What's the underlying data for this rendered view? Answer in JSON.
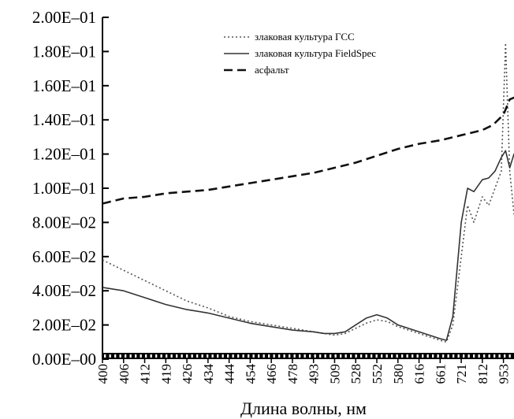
{
  "chart_data": {
    "type": "line",
    "title": "",
    "xlabel": "Длина волны, нм",
    "ylabel": "",
    "ylim": [
      0,
      0.2
    ],
    "y_ticks": [
      "0.00E–00",
      "2.00E–02",
      "4.00E–02",
      "6.00E–02",
      "8.00E–02",
      "1.00E–01",
      "1.20E–01",
      "1.40E–01",
      "1.60E–01",
      "1.80E–01",
      "2.00E–01"
    ],
    "x_ticks": [
      "400",
      "406",
      "412",
      "419",
      "426",
      "434",
      "444",
      "454",
      "466",
      "478",
      "493",
      "509",
      "528",
      "552",
      "580",
      "616",
      "661",
      "721",
      "812",
      "953"
    ],
    "grid": false,
    "legend_position": "top-right",
    "series": [
      {
        "name": "злаковая культура ГСС",
        "style": "dotted",
        "color": "#555555",
        "points": [
          [
            0,
            0.058
          ],
          [
            1,
            0.052
          ],
          [
            2,
            0.046
          ],
          [
            3,
            0.04
          ],
          [
            4,
            0.034
          ],
          [
            5,
            0.03
          ],
          [
            6,
            0.025
          ],
          [
            7,
            0.022
          ],
          [
            8,
            0.02
          ],
          [
            9,
            0.018
          ],
          [
            10,
            0.016
          ],
          [
            10.5,
            0.015
          ],
          [
            11,
            0.014
          ],
          [
            11.5,
            0.015
          ],
          [
            12,
            0.018
          ],
          [
            12.5,
            0.021
          ],
          [
            13,
            0.023
          ],
          [
            13.5,
            0.022
          ],
          [
            14,
            0.019
          ],
          [
            15,
            0.015
          ],
          [
            15.5,
            0.013
          ],
          [
            16,
            0.011
          ],
          [
            16.3,
            0.01
          ],
          [
            16.6,
            0.02
          ],
          [
            17,
            0.06
          ],
          [
            17.3,
            0.09
          ],
          [
            17.6,
            0.08
          ],
          [
            18,
            0.095
          ],
          [
            18.3,
            0.09
          ],
          [
            18.6,
            0.1
          ],
          [
            18.9,
            0.11
          ],
          [
            19.1,
            0.185
          ],
          [
            19.3,
            0.11
          ],
          [
            19.5,
            0.085
          ],
          [
            19.7,
            0.105
          ]
        ]
      },
      {
        "name": "злаковая культура FieldSpec",
        "style": "solid",
        "color": "#333333",
        "points": [
          [
            0,
            0.042
          ],
          [
            1,
            0.04
          ],
          [
            2,
            0.036
          ],
          [
            3,
            0.032
          ],
          [
            4,
            0.029
          ],
          [
            5,
            0.027
          ],
          [
            6,
            0.024
          ],
          [
            7,
            0.021
          ],
          [
            8,
            0.019
          ],
          [
            9,
            0.017
          ],
          [
            10,
            0.016
          ],
          [
            10.5,
            0.015
          ],
          [
            11,
            0.015
          ],
          [
            11.5,
            0.016
          ],
          [
            12,
            0.02
          ],
          [
            12.5,
            0.024
          ],
          [
            13,
            0.026
          ],
          [
            13.5,
            0.024
          ],
          [
            14,
            0.02
          ],
          [
            15,
            0.016
          ],
          [
            15.5,
            0.014
          ],
          [
            16,
            0.012
          ],
          [
            16.3,
            0.011
          ],
          [
            16.6,
            0.025
          ],
          [
            17,
            0.08
          ],
          [
            17.3,
            0.1
          ],
          [
            17.6,
            0.098
          ],
          [
            18,
            0.105
          ],
          [
            18.3,
            0.106
          ],
          [
            18.6,
            0.11
          ],
          [
            18.9,
            0.118
          ],
          [
            19.1,
            0.122
          ],
          [
            19.3,
            0.112
          ],
          [
            19.5,
            0.12
          ],
          [
            19.7,
            0.115
          ]
        ]
      },
      {
        "name": "асфальт",
        "style": "dashed",
        "color": "#111111",
        "points": [
          [
            0,
            0.091
          ],
          [
            1,
            0.094
          ],
          [
            2,
            0.095
          ],
          [
            3,
            0.097
          ],
          [
            4,
            0.098
          ],
          [
            5,
            0.099
          ],
          [
            6,
            0.101
          ],
          [
            7,
            0.103
          ],
          [
            8,
            0.105
          ],
          [
            9,
            0.107
          ],
          [
            10,
            0.109
          ],
          [
            11,
            0.112
          ],
          [
            12,
            0.115
          ],
          [
            13,
            0.119
          ],
          [
            14,
            0.123
          ],
          [
            15,
            0.126
          ],
          [
            16,
            0.128
          ],
          [
            17,
            0.131
          ],
          [
            18,
            0.134
          ],
          [
            18.5,
            0.137
          ],
          [
            19,
            0.143
          ],
          [
            19.3,
            0.152
          ],
          [
            19.7,
            0.154
          ]
        ]
      }
    ]
  }
}
